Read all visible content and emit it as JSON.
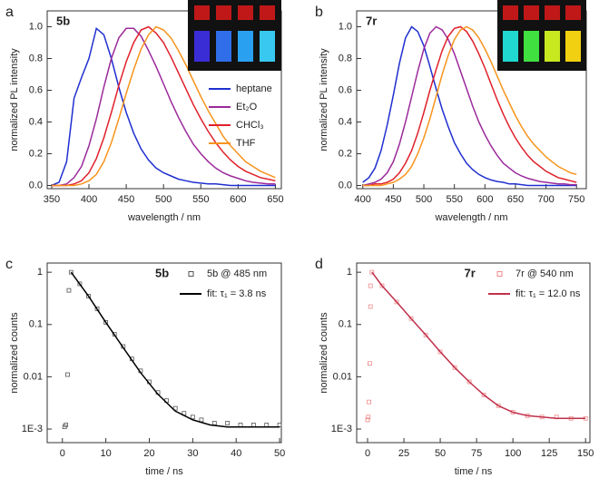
{
  "chart_data": [
    {
      "type": "line",
      "panel_label": "a",
      "annotation": "5b",
      "x_label": "wavelength / nm",
      "y_label": "normalized PL intensity",
      "x": [
        350,
        360,
        370,
        380,
        390,
        400,
        410,
        420,
        430,
        440,
        450,
        460,
        470,
        480,
        490,
        500,
        510,
        520,
        530,
        540,
        550,
        560,
        570,
        580,
        590,
        600,
        610,
        620,
        630,
        640,
        650
      ],
      "series": [
        {
          "name": "heptane",
          "color": "#1f2fd0",
          "values": [
            0,
            0.02,
            0.15,
            0.55,
            0.68,
            0.8,
            0.99,
            0.95,
            0.8,
            0.62,
            0.46,
            0.33,
            0.23,
            0.16,
            0.11,
            0.08,
            0.06,
            0.04,
            0.03,
            0.02,
            0.015,
            0.01,
            0.01,
            0.005,
            0,
            0,
            0,
            0,
            0,
            0,
            0
          ]
        },
        {
          "name": "Et₂O",
          "color": "#9b2a9b",
          "values": [
            0,
            0,
            0.01,
            0.05,
            0.12,
            0.25,
            0.42,
            0.62,
            0.8,
            0.93,
            0.99,
            0.99,
            0.94,
            0.85,
            0.75,
            0.64,
            0.53,
            0.43,
            0.34,
            0.26,
            0.2,
            0.15,
            0.11,
            0.08,
            0.06,
            0.045,
            0.03,
            0.02,
            0.015,
            0.01,
            0.01
          ]
        },
        {
          "name": "CHCl₃",
          "color": "#e0202a",
          "values": [
            0,
            0,
            0,
            0.01,
            0.03,
            0.08,
            0.17,
            0.3,
            0.46,
            0.63,
            0.78,
            0.9,
            0.98,
            1.0,
            0.96,
            0.9,
            0.81,
            0.71,
            0.61,
            0.51,
            0.42,
            0.34,
            0.27,
            0.21,
            0.16,
            0.12,
            0.09,
            0.07,
            0.05,
            0.04,
            0.03
          ]
        },
        {
          "name": "THF",
          "color": "#f7941d",
          "values": [
            0,
            0,
            0,
            0,
            0.01,
            0.03,
            0.07,
            0.15,
            0.27,
            0.42,
            0.58,
            0.73,
            0.86,
            0.95,
            1.0,
            0.98,
            0.93,
            0.85,
            0.76,
            0.66,
            0.56,
            0.47,
            0.39,
            0.31,
            0.25,
            0.2,
            0.15,
            0.12,
            0.09,
            0.07,
            0.05
          ]
        }
      ],
      "xlim": [
        344,
        658
      ],
      "xticks": [
        350,
        400,
        450,
        500,
        550,
        600,
        650
      ],
      "ylim": [
        -0.02,
        1.1
      ],
      "yticks": [
        {
          "value": 0,
          "label": "0.0"
        },
        0.2,
        0.4,
        0.6,
        0.8,
        {
          "value": 1,
          "label": "1.0"
        }
      ],
      "legend": "center right"
    },
    {
      "type": "line",
      "panel_label": "b",
      "annotation": "7r",
      "x_label": "wavelength / nm",
      "y_label": "normalized PL intensity",
      "x": [
        400,
        410,
        420,
        430,
        440,
        450,
        460,
        470,
        480,
        490,
        500,
        510,
        520,
        530,
        540,
        550,
        560,
        570,
        580,
        590,
        600,
        610,
        620,
        630,
        640,
        650,
        660,
        670,
        680,
        690,
        700,
        710,
        720,
        730,
        740,
        750
      ],
      "series": [
        {
          "color": "#1f2fd0",
          "values": [
            0.02,
            0.05,
            0.11,
            0.22,
            0.38,
            0.57,
            0.77,
            0.93,
            1.0,
            0.97,
            0.88,
            0.75,
            0.61,
            0.48,
            0.37,
            0.27,
            0.2,
            0.14,
            0.1,
            0.07,
            0.05,
            0.035,
            0.025,
            0.02,
            0.01,
            0.01,
            0.005,
            0,
            0,
            0,
            0,
            0,
            0,
            0,
            0,
            0
          ]
        },
        {
          "color": "#9b2a9b",
          "values": [
            0,
            0.01,
            0.02,
            0.04,
            0.08,
            0.15,
            0.26,
            0.4,
            0.56,
            0.72,
            0.86,
            0.96,
            1.0,
            0.98,
            0.92,
            0.83,
            0.72,
            0.61,
            0.5,
            0.4,
            0.32,
            0.25,
            0.19,
            0.14,
            0.11,
            0.08,
            0.06,
            0.045,
            0.035,
            0.025,
            0.02,
            0.015,
            0.01,
            0.01,
            0.005,
            0.005
          ]
        },
        {
          "color": "#e0202a",
          "values": [
            0,
            0,
            0.01,
            0.01,
            0.02,
            0.04,
            0.08,
            0.14,
            0.22,
            0.33,
            0.46,
            0.6,
            0.73,
            0.85,
            0.94,
            0.99,
            1.0,
            0.97,
            0.91,
            0.83,
            0.74,
            0.64,
            0.54,
            0.45,
            0.37,
            0.3,
            0.24,
            0.19,
            0.15,
            0.12,
            0.09,
            0.07,
            0.05,
            0.04,
            0.03,
            0.02
          ]
        },
        {
          "color": "#f7941d",
          "values": [
            0,
            0,
            0,
            0,
            0.01,
            0.02,
            0.04,
            0.07,
            0.12,
            0.2,
            0.3,
            0.42,
            0.56,
            0.7,
            0.82,
            0.92,
            0.98,
            1.0,
            0.98,
            0.93,
            0.86,
            0.78,
            0.69,
            0.6,
            0.52,
            0.44,
            0.37,
            0.31,
            0.26,
            0.22,
            0.18,
            0.15,
            0.12,
            0.1,
            0.08,
            0.07
          ]
        }
      ],
      "xlim": [
        390,
        766
      ],
      "xticks": [
        400,
        450,
        500,
        550,
        600,
        650,
        700,
        750
      ],
      "ylim": [
        -0.02,
        1.1
      ],
      "yticks": [
        {
          "value": 0,
          "label": "0.0"
        },
        0.2,
        0.4,
        0.6,
        0.8,
        {
          "value": 1,
          "label": "1.0"
        }
      ]
    },
    {
      "type": "line",
      "panel_label": "c",
      "annotation": "5b",
      "x_label": "time / ns",
      "y_label": "normalized counts",
      "yscale": "log",
      "series": [
        {
          "name": "5b @ 485 nm",
          "mode": "markers",
          "color": "#555555",
          "x": [
            0.5,
            0.8,
            1.2,
            1.5,
            2,
            4,
            6,
            8,
            10,
            12,
            14,
            16,
            18,
            20,
            22,
            24,
            26,
            28,
            30,
            32,
            35,
            38,
            41,
            44,
            47,
            50
          ],
          "values": [
            0.0011,
            0.0012,
            0.011,
            0.45,
            1.0,
            0.6,
            0.35,
            0.2,
            0.11,
            0.065,
            0.038,
            0.022,
            0.013,
            0.008,
            0.005,
            0.0035,
            0.0025,
            0.002,
            0.0017,
            0.0015,
            0.0013,
            0.0013,
            0.0012,
            0.0012,
            0.0012,
            0.0012
          ]
        },
        {
          "name": "fit: τ₁ = 3.8 ns",
          "mode": "line",
          "color": "#000000",
          "x": [
            2,
            6,
            10,
            14,
            18,
            22,
            26,
            30,
            34,
            38,
            42,
            46,
            50
          ],
          "values": [
            1.0,
            0.35,
            0.11,
            0.036,
            0.012,
            0.0046,
            0.0022,
            0.0015,
            0.0012,
            0.0011,
            0.0011,
            0.0011,
            0.0011
          ]
        }
      ],
      "xlim": [
        -3.5,
        50.4
      ],
      "xticks": [
        0,
        10,
        20,
        30,
        40,
        50
      ],
      "ylim": [
        0.00055,
        1.5
      ],
      "yticks": [
        1,
        0.1,
        0.01,
        {
          "value": 0.001,
          "label": "1E-3"
        }
      ],
      "legend": "upper right"
    },
    {
      "type": "line",
      "panel_label": "d",
      "annotation": "7r",
      "x_label": "time / ns",
      "y_label": "normalized counts",
      "yscale": "log",
      "series": [
        {
          "name": "7r @ 540 nm",
          "mode": "markers",
          "color": "#f08a8a",
          "x": [
            0,
            0.5,
            1,
            1.5,
            2,
            2,
            3,
            10,
            20,
            30,
            40,
            50,
            60,
            70,
            80,
            90,
            100,
            110,
            120,
            130,
            140,
            150
          ],
          "values": [
            0.0015,
            0.0017,
            0.0033,
            0.018,
            0.22,
            0.55,
            1.0,
            0.55,
            0.27,
            0.13,
            0.063,
            0.03,
            0.015,
            0.008,
            0.0045,
            0.0028,
            0.0021,
            0.0018,
            0.0017,
            0.0017,
            0.0016,
            0.0016
          ]
        },
        {
          "name": "fit: τ₁ = 12.0 ns",
          "mode": "line",
          "color": "#c0304a",
          "x": [
            3,
            10,
            20,
            30,
            40,
            50,
            60,
            70,
            80,
            90,
            100,
            110,
            120,
            130,
            140,
            150
          ],
          "values": [
            1.0,
            0.55,
            0.27,
            0.13,
            0.063,
            0.03,
            0.015,
            0.008,
            0.0045,
            0.0028,
            0.0021,
            0.0018,
            0.0017,
            0.0016,
            0.0016,
            0.0016
          ]
        }
      ],
      "xlim": [
        -7.5,
        153
      ],
      "xticks": [
        0,
        25,
        50,
        75,
        100,
        125,
        150
      ],
      "ylim": [
        0.00055,
        1.5
      ],
      "yticks": [
        1,
        0.1,
        0.01,
        {
          "value": 0.001,
          "label": "1E-3"
        }
      ],
      "legend": "upper right"
    }
  ]
}
